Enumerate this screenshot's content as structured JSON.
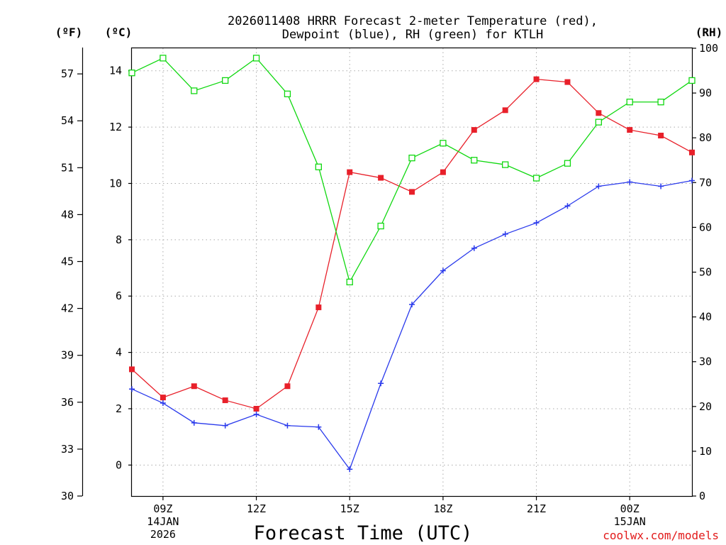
{
  "title_lines": [
    "2026011408 HRRR Forecast 2-meter Temperature (red),",
    "Dewpoint (blue), RH (green) for KTLH"
  ],
  "credit": "coolwx.com/models",
  "colors": {
    "temperature": "#e8202a",
    "dewpoint": "#2a3aec",
    "rh": "#10d810",
    "grid": "#aaaaaa",
    "credit": "#e21a1a"
  },
  "chart_data": {
    "type": "line",
    "title": "2026011408 HRRR Forecast 2-meter Temperature (red), Dewpoint (blue), RH (green) for KTLH",
    "xlabel": "Forecast Time (UTC)",
    "x": [
      8,
      9,
      10,
      11,
      12,
      13,
      14,
      15,
      16,
      17,
      18,
      19,
      20,
      21,
      22,
      23,
      24,
      25,
      26
    ],
    "xlim": [
      8,
      26
    ],
    "x_ticks": [
      {
        "x": 9,
        "lines": [
          "09Z",
          "14JAN",
          "2026"
        ]
      },
      {
        "x": 12,
        "lines": [
          "12Z"
        ]
      },
      {
        "x": 15,
        "lines": [
          "15Z"
        ]
      },
      {
        "x": 18,
        "lines": [
          "18Z"
        ]
      },
      {
        "x": 21,
        "lines": [
          "21Z"
        ]
      },
      {
        "x": 24,
        "lines": [
          "00Z",
          "15JAN"
        ]
      }
    ],
    "celsius_axis": {
      "label": "(ºC)",
      "ylim": [
        -1.1,
        14.8
      ],
      "ticks": [
        0,
        2,
        4,
        6,
        8,
        10,
        12,
        14
      ]
    },
    "fahrenheit_axis": {
      "label": "(ºF)",
      "ylim": [
        30,
        58.64
      ],
      "ticks": [
        30,
        33,
        36,
        39,
        42,
        45,
        48,
        51,
        54,
        57
      ]
    },
    "rh_axis": {
      "label": "(RH)",
      "ylim": [
        0,
        100
      ],
      "ticks": [
        0,
        10,
        20,
        30,
        40,
        50,
        60,
        70,
        80,
        90,
        100
      ]
    },
    "series": [
      {
        "name": "Temperature",
        "axis": "celsius",
        "marker": "filled-square",
        "values": [
          3.4,
          2.4,
          2.8,
          2.3,
          2.0,
          2.8,
          5.6,
          10.4,
          10.2,
          9.7,
          10.4,
          11.9,
          12.6,
          13.7,
          13.6,
          12.5,
          11.9,
          11.7,
          11.1
        ]
      },
      {
        "name": "Dewpoint",
        "axis": "celsius",
        "marker": "plus",
        "values": [
          2.7,
          2.2,
          1.5,
          1.4,
          1.8,
          1.4,
          1.35,
          -0.15,
          2.9,
          5.7,
          6.9,
          7.7,
          8.2,
          8.6,
          9.2,
          9.9,
          10.05,
          9.9,
          10.1
        ]
      },
      {
        "name": "RH",
        "axis": "rh",
        "marker": "open-square",
        "values": [
          94.5,
          97.8,
          90.5,
          92.8,
          97.8,
          89.8,
          73.5,
          47.8,
          60.3,
          75.5,
          78.8,
          75.0,
          74.0,
          71.0,
          74.3,
          83.5,
          88.0,
          88.0,
          92.8
        ]
      }
    ]
  }
}
